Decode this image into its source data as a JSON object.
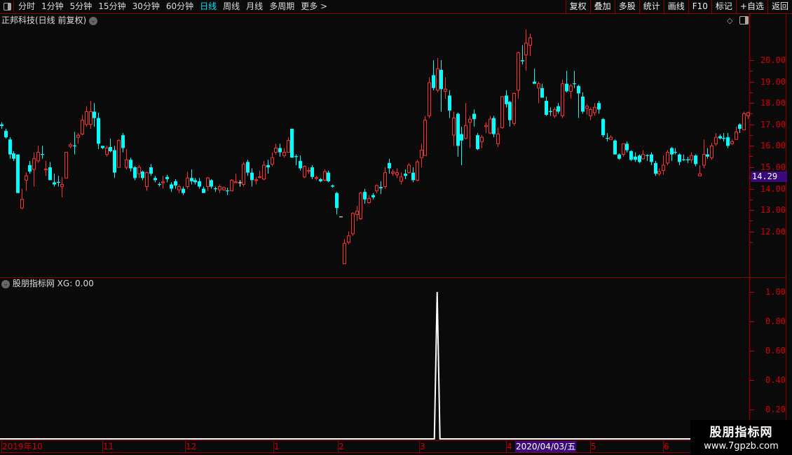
{
  "toolbar": {
    "periods": [
      "分时",
      "1分钟",
      "5分钟",
      "15分钟",
      "30分钟",
      "60分钟",
      "日线",
      "周线",
      "月线",
      "多周期",
      "更多 >"
    ],
    "active_period": "日线",
    "tools": [
      "复权",
      "叠加",
      "多股",
      "统计",
      "画线",
      "F10",
      "标记",
      "+自选",
      "返回"
    ]
  },
  "main_chart": {
    "title": "正邦科技(日线 前复权)",
    "current_price": "14.29",
    "price_ticks": [
      "20.00",
      "19.00",
      "18.00",
      "17.00",
      "16.00",
      "15.00",
      "14.00",
      "13.00",
      "12.00"
    ]
  },
  "indicator": {
    "title": "股朋指标网",
    "readout": "XG: 0.00",
    "ticks": [
      "1.00",
      "0.80",
      "0.60",
      "0.40",
      "0.20"
    ]
  },
  "date_axis": {
    "labels": [
      "2019年10",
      "11",
      "12",
      "1",
      "2",
      "3",
      "4",
      "5",
      "6"
    ],
    "cursor_date": "2020/04/03/五"
  },
  "watermark": {
    "line1": "股朋指标网",
    "line2": "www.7gpzb.com"
  },
  "colors": {
    "up": "#ff3232",
    "down": "#00ffff",
    "axis": "#d00000",
    "cursor_bg": "#3a0a7a"
  },
  "chart_data": {
    "type": "candlestick",
    "ylim": [
      10.4,
      21.5
    ],
    "ohlc": [
      [
        17.0,
        17.1,
        16.8,
        16.93
      ],
      [
        16.7,
        16.8,
        16.35,
        16.4
      ],
      [
        16.3,
        16.4,
        15.4,
        15.6
      ],
      [
        15.65,
        15.75,
        15.3,
        15.4
      ],
      [
        15.6,
        15.6,
        13.8,
        13.8
      ],
      [
        13.1,
        14.0,
        13.05,
        13.5
      ],
      [
        14.4,
        14.75,
        13.9,
        14.6
      ],
      [
        15.1,
        15.3,
        14.7,
        14.8
      ],
      [
        14.9,
        15.7,
        14.1,
        15.4
      ],
      [
        15.3,
        16.0,
        15.2,
        15.7
      ],
      [
        15.62,
        16.0,
        15.4,
        15.58
      ],
      [
        14.88,
        15.3,
        14.6,
        14.92
      ],
      [
        15.0,
        15.25,
        14.4,
        14.4
      ],
      [
        14.3,
        14.7,
        14.1,
        14.2
      ],
      [
        14.32,
        14.6,
        14.1,
        14.28
      ],
      [
        14.1,
        14.55,
        13.6,
        14.2
      ],
      [
        14.5,
        15.7,
        14.5,
        15.7
      ],
      [
        15.98,
        16.15,
        15.9,
        16.05
      ],
      [
        16.02,
        16.65,
        15.6,
        15.98
      ],
      [
        16.4,
        16.6,
        16.1,
        16.5
      ],
      [
        16.55,
        17.45,
        16.5,
        17.2
      ],
      [
        17.0,
        17.85,
        16.9,
        17.6
      ],
      [
        17.0,
        18.1,
        16.8,
        17.6
      ],
      [
        17.6,
        18.0,
        16.9,
        17.3
      ],
      [
        17.3,
        17.55,
        15.85,
        16.1
      ],
      [
        16.0,
        16.0,
        15.85,
        15.9
      ],
      [
        15.6,
        16.0,
        15.5,
        15.9
      ],
      [
        15.95,
        16.35,
        15.7,
        15.75
      ],
      [
        15.8,
        16.0,
        14.5,
        14.75
      ],
      [
        15.0,
        16.3,
        15.0,
        16.25
      ],
      [
        16.5,
        16.6,
        15.7,
        15.9
      ],
      [
        15.0,
        15.85,
        14.9,
        15.35
      ],
      [
        15.35,
        15.45,
        14.8,
        14.95
      ],
      [
        15.0,
        15.05,
        14.4,
        14.5
      ],
      [
        14.7,
        15.1,
        14.5,
        15.0
      ],
      [
        14.8,
        14.85,
        14.4,
        14.5
      ],
      [
        14.1,
        14.8,
        13.9,
        14.75
      ],
      [
        15.0,
        15.15,
        14.6,
        14.7
      ],
      [
        14.5,
        14.6,
        14.3,
        14.4
      ],
      [
        14.22,
        14.3,
        14.1,
        14.18
      ],
      [
        14.28,
        14.6,
        14.0,
        14.32
      ],
      [
        14.55,
        14.65,
        14.3,
        14.45
      ],
      [
        14.2,
        14.3,
        13.85,
        14.0
      ],
      [
        14.35,
        14.45,
        14.0,
        14.15
      ],
      [
        13.95,
        14.2,
        13.8,
        14.1
      ],
      [
        14.0,
        14.1,
        13.7,
        13.8
      ],
      [
        14.1,
        14.8,
        14.0,
        14.5
      ],
      [
        14.5,
        14.9,
        14.2,
        14.35
      ],
      [
        14.4,
        14.5,
        14.2,
        14.3
      ],
      [
        14.35,
        14.5,
        14.0,
        14.1
      ],
      [
        14.0,
        14.1,
        13.8,
        13.8
      ],
      [
        14.1,
        14.55,
        13.9,
        14.5
      ],
      [
        14.4,
        14.45,
        14.0,
        14.1
      ],
      [
        14.02,
        14.1,
        13.85,
        13.98
      ],
      [
        13.95,
        14.2,
        13.8,
        14.1
      ],
      [
        13.95,
        14.1,
        13.9,
        14.05
      ],
      [
        13.92,
        14.05,
        13.7,
        13.88
      ],
      [
        13.9,
        14.45,
        13.9,
        14.4
      ],
      [
        14.28,
        14.7,
        14.28,
        14.32
      ],
      [
        14.3,
        14.4,
        14.1,
        14.3
      ],
      [
        14.2,
        15.25,
        14.1,
        15.15
      ],
      [
        15.25,
        15.35,
        14.6,
        14.75
      ],
      [
        14.75,
        14.95,
        14.1,
        14.4
      ],
      [
        14.38,
        14.55,
        14.2,
        14.42
      ],
      [
        14.52,
        14.85,
        14.48,
        14.56
      ],
      [
        14.45,
        15.3,
        14.4,
        15.1
      ],
      [
        15.1,
        15.35,
        14.7,
        15.0
      ],
      [
        15.15,
        15.7,
        15.05,
        15.45
      ],
      [
        15.7,
        16.1,
        15.6,
        15.9
      ],
      [
        15.9,
        16.1,
        15.5,
        15.7
      ],
      [
        15.55,
        15.9,
        15.45,
        15.7
      ],
      [
        15.7,
        16.4,
        15.7,
        16.25
      ],
      [
        16.8,
        16.8,
        15.45,
        15.45
      ],
      [
        15.52,
        15.6,
        15.1,
        15.48
      ],
      [
        15.3,
        15.55,
        14.85,
        14.95
      ],
      [
        14.55,
        15.1,
        14.5,
        15.05
      ],
      [
        14.82,
        15.0,
        14.7,
        14.86
      ],
      [
        15.0,
        15.1,
        14.45,
        14.55
      ],
      [
        14.48,
        14.6,
        14.4,
        14.52
      ],
      [
        14.45,
        14.5,
        14.3,
        14.35
      ],
      [
        14.4,
        14.9,
        14.35,
        14.8
      ],
      [
        14.75,
        14.85,
        14.3,
        14.35
      ],
      [
        14.15,
        14.2,
        14.05,
        14.1
      ],
      [
        13.8,
        13.85,
        12.8,
        13.1
      ],
      [
        12.7,
        12.7,
        12.7,
        12.7
      ],
      [
        10.5,
        11.65,
        10.5,
        11.45
      ],
      [
        11.5,
        12.0,
        11.4,
        11.8
      ],
      [
        11.9,
        12.9,
        11.8,
        12.85
      ],
      [
        12.8,
        13.2,
        12.5,
        12.95
      ],
      [
        12.6,
        13.85,
        12.55,
        13.8
      ],
      [
        13.85,
        14.0,
        13.3,
        13.5
      ],
      [
        13.35,
        13.7,
        13.3,
        13.55
      ],
      [
        13.7,
        13.8,
        13.5,
        13.6
      ],
      [
        13.9,
        14.2,
        13.8,
        14.15
      ],
      [
        14.08,
        14.35,
        13.75,
        14.02
      ],
      [
        14.1,
        15.0,
        14.0,
        14.75
      ],
      [
        15.2,
        15.4,
        14.7,
        14.95
      ],
      [
        14.72,
        14.9,
        14.6,
        14.78
      ],
      [
        14.65,
        14.95,
        14.5,
        14.75
      ],
      [
        14.35,
        14.75,
        14.2,
        14.55
      ],
      [
        14.7,
        14.9,
        14.45,
        14.6
      ],
      [
        14.75,
        15.2,
        14.7,
        15.1
      ],
      [
        14.75,
        15.0,
        14.3,
        14.4
      ],
      [
        14.4,
        15.35,
        14.35,
        15.25
      ],
      [
        15.45,
        16.1,
        15.0,
        15.8
      ],
      [
        15.55,
        17.4,
        15.55,
        17.2
      ],
      [
        17.4,
        19.2,
        17.3,
        18.95
      ],
      [
        19.3,
        20.0,
        18.6,
        18.7
      ],
      [
        18.6,
        20.1,
        18.5,
        19.6
      ],
      [
        19.55,
        20.0,
        17.6,
        18.65
      ],
      [
        18.55,
        19.2,
        18.2,
        18.65
      ],
      [
        18.35,
        18.6,
        17.3,
        17.65
      ],
      [
        16.5,
        17.6,
        16.0,
        17.3
      ],
      [
        17.5,
        17.55,
        15.5,
        16.0
      ],
      [
        16.55,
        16.9,
        15.1,
        16.25
      ],
      [
        16.35,
        18.0,
        16.3,
        16.95
      ],
      [
        17.1,
        17.4,
        15.9,
        17.25
      ],
      [
        17.5,
        17.7,
        16.9,
        17.25
      ],
      [
        16.5,
        16.6,
        15.8,
        15.85
      ],
      [
        16.2,
        16.5,
        15.9,
        16.4
      ],
      [
        16.9,
        17.1,
        16.6,
        16.95
      ],
      [
        16.6,
        17.4,
        16.55,
        17.25
      ],
      [
        17.3,
        17.4,
        16.4,
        16.55
      ],
      [
        16.1,
        16.85,
        15.95,
        16.55
      ],
      [
        16.85,
        18.3,
        16.8,
        18.3
      ],
      [
        18.35,
        18.6,
        17.8,
        17.95
      ],
      [
        18.05,
        18.1,
        16.9,
        17.2
      ],
      [
        17.05,
        18.5,
        16.95,
        18.45
      ],
      [
        18.6,
        20.4,
        18.2,
        20.35
      ],
      [
        20.0,
        20.7,
        19.8,
        19.95
      ],
      [
        20.25,
        21.45,
        19.5,
        20.8
      ],
      [
        20.7,
        21.25,
        20.2,
        21.05
      ],
      [
        19.0,
        19.6,
        18.9,
        18.9
      ],
      [
        18.7,
        19.0,
        18.0,
        18.9
      ],
      [
        18.7,
        18.9,
        18.25,
        18.25
      ],
      [
        18.1,
        18.3,
        17.4,
        17.45
      ],
      [
        17.62,
        17.8,
        17.4,
        17.58
      ],
      [
        17.4,
        17.8,
        17.3,
        17.7
      ],
      [
        17.85,
        18.0,
        17.5,
        17.6
      ],
      [
        17.4,
        19.1,
        17.3,
        18.9
      ],
      [
        18.9,
        19.5,
        18.5,
        18.55
      ],
      [
        18.55,
        18.9,
        18.2,
        18.8
      ],
      [
        18.92,
        19.5,
        18.7,
        18.88
      ],
      [
        18.8,
        18.85,
        17.3,
        18.45
      ],
      [
        18.3,
        18.5,
        17.5,
        17.6
      ],
      [
        17.75,
        17.95,
        17.45,
        17.85
      ],
      [
        17.4,
        17.8,
        17.2,
        17.7
      ],
      [
        17.55,
        18.0,
        17.4,
        17.8
      ],
      [
        18.0,
        18.1,
        17.5,
        17.7
      ],
      [
        17.25,
        17.3,
        16.4,
        16.5
      ],
      [
        16.37,
        16.6,
        16.2,
        16.33
      ],
      [
        16.3,
        16.5,
        16.3,
        16.4
      ],
      [
        16.25,
        16.3,
        15.6,
        15.6
      ],
      [
        15.6,
        15.65,
        15.35,
        15.4
      ],
      [
        15.6,
        16.1,
        15.5,
        16.1
      ],
      [
        16.1,
        16.2,
        15.7,
        15.8
      ],
      [
        15.75,
        15.8,
        15.3,
        15.35
      ],
      [
        15.5,
        15.7,
        15.25,
        15.35
      ],
      [
        15.55,
        15.6,
        15.2,
        15.25
      ],
      [
        15.4,
        15.8,
        15.35,
        15.6
      ],
      [
        15.57,
        15.6,
        15.3,
        15.53
      ],
      [
        15.6,
        15.7,
        15.1,
        15.25
      ],
      [
        15.2,
        15.3,
        14.6,
        14.7
      ],
      [
        14.7,
        14.95,
        14.6,
        14.8
      ],
      [
        14.85,
        15.55,
        14.65,
        15.1
      ],
      [
        15.2,
        15.8,
        15.1,
        15.7
      ],
      [
        15.9,
        15.95,
        15.3,
        15.6
      ],
      [
        15.72,
        15.9,
        15.6,
        15.68
      ],
      [
        15.6,
        15.65,
        15.1,
        15.25
      ],
      [
        15.37,
        15.6,
        15.3,
        15.33
      ],
      [
        15.37,
        15.5,
        15.2,
        15.33
      ],
      [
        15.35,
        15.7,
        15.2,
        15.55
      ],
      [
        15.55,
        15.6,
        15.05,
        15.15
      ],
      [
        14.6,
        15.1,
        14.6,
        14.7
      ],
      [
        15.1,
        16.3,
        14.95,
        15.6
      ],
      [
        15.6,
        15.9,
        15.4,
        15.5
      ],
      [
        15.45,
        16.15,
        15.35,
        16.0
      ],
      [
        16.1,
        16.6,
        16.0,
        16.4
      ],
      [
        16.45,
        16.55,
        16.3,
        16.35
      ],
      [
        16.37,
        16.6,
        16.2,
        16.33
      ],
      [
        16.4,
        16.6,
        15.9,
        16.0
      ],
      [
        16.1,
        16.3,
        16.05,
        16.2
      ],
      [
        16.3,
        16.9,
        16.3,
        16.65
      ],
      [
        17.0,
        17.05,
        16.6,
        16.8
      ],
      [
        16.75,
        17.6,
        16.75,
        17.5
      ],
      [
        17.4,
        17.6,
        17.25,
        17.55
      ]
    ],
    "indicator_series": {
      "name": "XG",
      "ylim": [
        0,
        1.05
      ],
      "spike_index": 108,
      "spike_value": 1.0,
      "baseline": 0.0
    }
  }
}
